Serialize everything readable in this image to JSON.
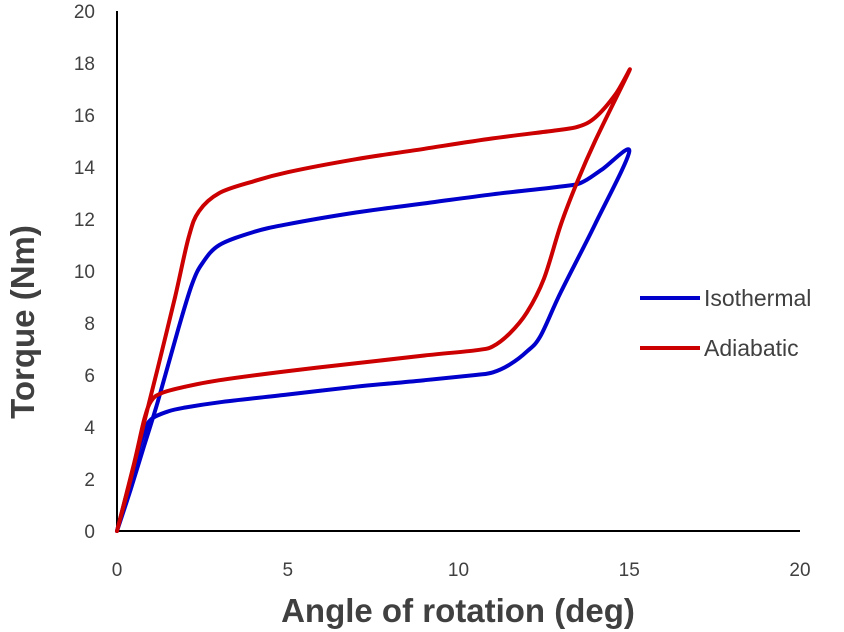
{
  "chart_data": {
    "type": "line",
    "title": "",
    "xlabel": "Angle of rotation (deg)",
    "ylabel": "Torque (Nm)",
    "xlim": [
      0,
      20
    ],
    "ylim": [
      0,
      20
    ],
    "x_ticks": [
      0,
      5,
      10,
      15,
      20
    ],
    "y_ticks": [
      0,
      2,
      4,
      6,
      8,
      10,
      12,
      14,
      16,
      18,
      20
    ],
    "grid": false,
    "legend_position": "right",
    "series": [
      {
        "name": "Isothermal",
        "color": "#0000cc",
        "points": [
          [
            0,
            0
          ],
          [
            0.5,
            2.5
          ],
          [
            0.8,
            3.8
          ],
          [
            1.0,
            4.3
          ],
          [
            1.5,
            4.6
          ],
          [
            2.0,
            4.75
          ],
          [
            3.0,
            4.95
          ],
          [
            5.0,
            5.25
          ],
          [
            7.0,
            5.55
          ],
          [
            9.0,
            5.8
          ],
          [
            10.5,
            6.0
          ],
          [
            11.0,
            6.1
          ],
          [
            11.5,
            6.4
          ],
          [
            12.0,
            6.9
          ],
          [
            12.4,
            7.5
          ],
          [
            13.0,
            9.2
          ],
          [
            14.0,
            11.8
          ],
          [
            15.0,
            14.6
          ],
          [
            14.2,
            13.9
          ],
          [
            13.6,
            13.4
          ],
          [
            13.0,
            13.25
          ],
          [
            11.0,
            12.95
          ],
          [
            9.0,
            12.6
          ],
          [
            7.0,
            12.25
          ],
          [
            5.0,
            11.8
          ],
          [
            4.0,
            11.5
          ],
          [
            3.0,
            11.0
          ],
          [
            2.5,
            10.3
          ],
          [
            2.2,
            9.5
          ],
          [
            1.8,
            7.8
          ],
          [
            1.2,
            5.0
          ],
          [
            0.8,
            3.3
          ],
          [
            0.4,
            1.6
          ],
          [
            0,
            0
          ]
        ]
      },
      {
        "name": "Adiabatic",
        "color": "#cc0000",
        "points": [
          [
            0,
            0
          ],
          [
            0.5,
            2.6
          ],
          [
            0.8,
            4.3
          ],
          [
            1.0,
            5.0
          ],
          [
            1.3,
            5.3
          ],
          [
            2.0,
            5.55
          ],
          [
            3.0,
            5.8
          ],
          [
            5.0,
            6.15
          ],
          [
            7.0,
            6.45
          ],
          [
            9.0,
            6.75
          ],
          [
            10.5,
            6.95
          ],
          [
            11.0,
            7.1
          ],
          [
            11.5,
            7.6
          ],
          [
            12.0,
            8.4
          ],
          [
            12.5,
            9.7
          ],
          [
            13.0,
            11.8
          ],
          [
            13.5,
            13.5
          ],
          [
            14.0,
            15.0
          ],
          [
            15.0,
            17.7
          ],
          [
            14.6,
            16.8
          ],
          [
            14.0,
            15.9
          ],
          [
            13.5,
            15.55
          ],
          [
            12.8,
            15.4
          ],
          [
            11.0,
            15.1
          ],
          [
            9.0,
            14.7
          ],
          [
            7.0,
            14.3
          ],
          [
            5.0,
            13.8
          ],
          [
            4.0,
            13.45
          ],
          [
            3.0,
            13.0
          ],
          [
            2.4,
            12.3
          ],
          [
            2.1,
            11.3
          ],
          [
            1.7,
            9.0
          ],
          [
            1.2,
            6.3
          ],
          [
            0.8,
            4.2
          ],
          [
            0.4,
            2.0
          ],
          [
            0,
            0
          ]
        ]
      }
    ]
  }
}
